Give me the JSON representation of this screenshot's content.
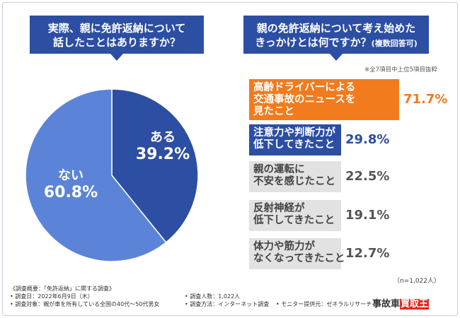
{
  "left_question": {
    "line1": "実際、親に免許返納について",
    "line2": "話したことはありますか？"
  },
  "right_question": {
    "line1": "親の免許返納について考え始めた",
    "line2": "きっかけとは何ですか？",
    "suffix": "(複数回答可)"
  },
  "top_note": "※全7項目中上位5項目抜粋",
  "n_note": "（n=1,022人）",
  "colors": {
    "navy": "#2c4ea3",
    "pie_yes": "#2c4ea3",
    "pie_no": "#5b84d8",
    "bar_top": "#f27b1e",
    "bar_second": "#2c4ea3",
    "bar_rest": "#e2e2e2"
  },
  "chart_data": [
    {
      "type": "pie",
      "categories": [
        "ある",
        "ない"
      ],
      "values": [
        39.2,
        60.8
      ],
      "labels": [
        "39.2%",
        "60.8%"
      ]
    },
    {
      "type": "bar",
      "categories": [
        [
          "高齢ドライバーによる",
          "交通事故のニュースを",
          "見たこと"
        ],
        [
          "注意力や判断力が",
          "低下してきたこと"
        ],
        [
          "親の運転に",
          "不安を感じたこと"
        ],
        [
          "反射神経が",
          "低下してきたこと"
        ],
        [
          "体力や筋力が",
          "なくなってきたこと"
        ]
      ],
      "values": [
        71.7,
        29.8,
        22.5,
        19.1,
        12.7
      ],
      "labels": [
        "71.7%",
        "29.8%",
        "22.5%",
        "19.1%",
        "12.7%"
      ]
    }
  ],
  "survey": {
    "overview": "《調査概要：「免許返納」に関する調査》",
    "date": "• 調査日：2022年6月9日（木）",
    "target": "• 調査対象：親が車を所有している全国の40代〜50代男女",
    "count": "• 調査人数：1,022人",
    "method": "• 調査方法：インターネット調査",
    "provider": "• モニター提供元：ゼネラルリサーチ"
  },
  "logo": {
    "part1": "事故車",
    "part2": "買取王"
  }
}
